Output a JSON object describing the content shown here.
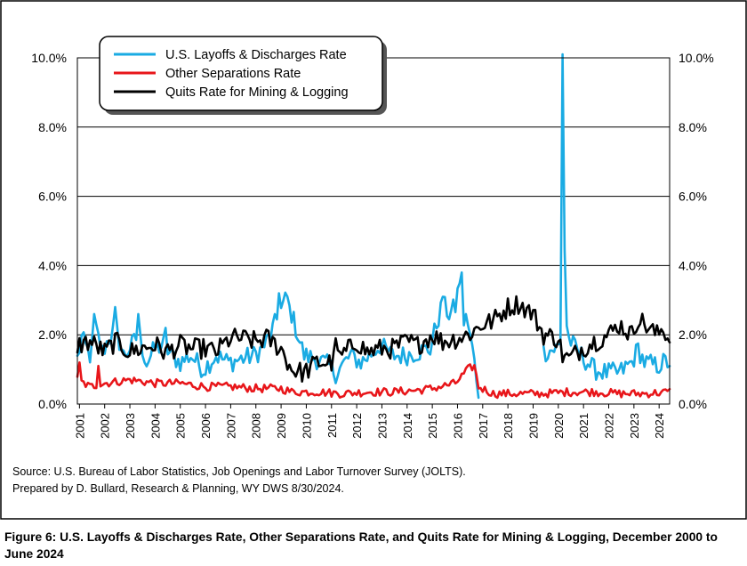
{
  "chart_data": {
    "type": "line",
    "x_start": "2000-12",
    "x_end": "2024-06",
    "x_ticks": [
      "2001",
      "2002",
      "2003",
      "2004",
      "2005",
      "2006",
      "2007",
      "2008",
      "2009",
      "2010",
      "2011",
      "2012",
      "2013",
      "2014",
      "2015",
      "2016",
      "2017",
      "2018",
      "2019",
      "2020",
      "2021",
      "2022",
      "2023",
      "2024"
    ],
    "y_ticks": [
      "0.0%",
      "2.0%",
      "4.0%",
      "6.0%",
      "8.0%",
      "10.0%"
    ],
    "ylim": [
      0,
      10
    ],
    "grid": "horizontal",
    "legend_position": "top-left",
    "series": [
      {
        "name": "U.S. Layoffs & Discharges Rate",
        "color": "#1AABE3",
        "knots": [
          [
            "2000-12",
            1.3
          ],
          [
            "2001-02",
            1.9
          ],
          [
            "2001-06",
            1.4
          ],
          [
            "2001-09",
            2.1
          ],
          [
            "2001-12",
            1.5
          ],
          [
            "2002-03",
            1.9
          ],
          [
            "2002-06",
            2.2
          ],
          [
            "2002-10",
            1.4
          ],
          [
            "2003-02",
            1.7
          ],
          [
            "2003-05",
            2.0
          ],
          [
            "2003-09",
            1.2
          ],
          [
            "2004-01",
            1.6
          ],
          [
            "2004-05",
            1.7
          ],
          [
            "2004-09",
            1.4
          ],
          [
            "2005-01",
            1.2
          ],
          [
            "2005-06",
            1.4
          ],
          [
            "2005-12",
            1.0
          ],
          [
            "2006-06",
            1.4
          ],
          [
            "2006-12",
            1.2
          ],
          [
            "2007-06",
            1.3
          ],
          [
            "2007-12",
            1.4
          ],
          [
            "2008-04",
            1.6
          ],
          [
            "2008-08",
            2.0
          ],
          [
            "2008-12",
            2.6
          ],
          [
            "2009-03",
            3.0
          ],
          [
            "2009-06",
            2.6
          ],
          [
            "2009-09",
            2.0
          ],
          [
            "2009-12",
            1.4
          ],
          [
            "2010-06",
            1.3
          ],
          [
            "2010-12",
            1.1
          ],
          [
            "2011-03",
            0.9
          ],
          [
            "2011-06",
            1.1
          ],
          [
            "2011-10",
            1.4
          ],
          [
            "2012-03",
            1.2
          ],
          [
            "2012-07",
            1.4
          ],
          [
            "2012-12",
            1.7
          ],
          [
            "2013-06",
            1.4
          ],
          [
            "2013-12",
            1.4
          ],
          [
            "2014-06",
            1.5
          ],
          [
            "2014-12",
            1.6
          ],
          [
            "2015-03",
            2.3
          ],
          [
            "2015-06",
            2.9
          ],
          [
            "2015-09",
            2.6
          ],
          [
            "2015-12",
            2.8
          ],
          [
            "2016-02",
            3.6
          ],
          [
            "2016-04",
            2.4
          ],
          [
            "2016-07",
            2.0
          ],
          [
            "2016-09",
            1.2
          ],
          [
            "2016-11",
            0.4
          ]
        ],
        "spikes": [
          [
            "2001-08",
            2.6
          ],
          [
            "2002-06",
            2.8
          ],
          [
            "2003-05",
            2.6
          ],
          [
            "2004-06",
            2.2
          ],
          [
            "2008-12",
            3.2
          ],
          [
            "2009-04",
            3.1
          ],
          [
            "2015-06",
            3.1
          ],
          [
            "2016-03",
            3.8
          ],
          [
            "2016-05",
            2.6
          ]
        ]
      },
      {
        "name": "U.S. Layoffs & Discharges Rate",
        "color": "#1AABE3",
        "knots": [
          [
            "2019-06",
            1.5
          ],
          [
            "2019-12",
            1.6
          ],
          [
            "2020-02",
            1.7
          ],
          [
            "2020-03",
            10.1
          ],
          [
            "2020-04",
            4.5
          ],
          [
            "2020-05",
            2.3
          ],
          [
            "2020-06",
            1.9
          ],
          [
            "2020-09",
            1.6
          ],
          [
            "2020-12",
            1.4
          ],
          [
            "2021-06",
            1.0
          ],
          [
            "2021-12",
            0.9
          ],
          [
            "2022-06",
            0.9
          ],
          [
            "2022-12",
            1.2
          ],
          [
            "2023-03",
            1.6
          ],
          [
            "2023-06",
            1.2
          ],
          [
            "2023-12",
            1.1
          ],
          [
            "2024-03",
            1.2
          ],
          [
            "2024-06",
            1.2
          ]
        ],
        "spikes": [
          [
            "2020-03",
            10.1
          ]
        ]
      },
      {
        "name": "Other Separations Rate",
        "color": "#E8161A",
        "knots": [
          [
            "2000-12",
            0.7
          ],
          [
            "2001-06",
            0.5
          ],
          [
            "2002-01",
            0.6
          ],
          [
            "2003-01",
            0.7
          ],
          [
            "2004-01",
            0.6
          ],
          [
            "2005-01",
            0.6
          ],
          [
            "2006-01",
            0.5
          ],
          [
            "2007-01",
            0.5
          ],
          [
            "2008-01",
            0.45
          ],
          [
            "2009-01",
            0.45
          ],
          [
            "2009-06",
            0.35
          ],
          [
            "2010-06",
            0.35
          ],
          [
            "2011-06",
            0.3
          ],
          [
            "2012-06",
            0.35
          ],
          [
            "2013-06",
            0.35
          ],
          [
            "2014-06",
            0.4
          ],
          [
            "2015-01",
            0.45
          ],
          [
            "2015-12",
            0.6
          ],
          [
            "2016-06",
            1.0
          ],
          [
            "2016-09",
            1.1
          ],
          [
            "2016-11",
            0.5
          ],
          [
            "2017-06",
            0.3
          ],
          [
            "2018-06",
            0.3
          ],
          [
            "2019-06",
            0.3
          ],
          [
            "2020-06",
            0.35
          ],
          [
            "2021-06",
            0.35
          ],
          [
            "2022-06",
            0.3
          ],
          [
            "2023-06",
            0.3
          ],
          [
            "2024-06",
            0.35
          ]
        ],
        "spikes": [
          [
            "2001-01",
            1.2
          ],
          [
            "2001-10",
            1.1
          ]
        ]
      },
      {
        "name": "Quits Rate for Mining & Logging",
        "color": "#000000",
        "knots": [
          [
            "2000-12",
            1.7
          ],
          [
            "2001-06",
            1.8
          ],
          [
            "2002-01",
            1.5
          ],
          [
            "2002-06",
            1.8
          ],
          [
            "2003-01",
            1.5
          ],
          [
            "2003-06",
            1.6
          ],
          [
            "2004-01",
            1.7
          ],
          [
            "2004-06",
            1.5
          ],
          [
            "2005-01",
            1.7
          ],
          [
            "2005-06",
            1.6
          ],
          [
            "2006-01",
            1.6
          ],
          [
            "2006-06",
            1.5
          ],
          [
            "2007-01",
            1.9
          ],
          [
            "2007-06",
            1.9
          ],
          [
            "2008-01",
            1.8
          ],
          [
            "2008-06",
            1.9
          ],
          [
            "2009-01",
            1.6
          ],
          [
            "2009-06",
            1.0
          ],
          [
            "2009-12",
            0.9
          ],
          [
            "2010-06",
            1.2
          ],
          [
            "2011-01",
            1.2
          ],
          [
            "2011-06",
            1.4
          ],
          [
            "2012-01",
            1.8
          ],
          [
            "2012-06",
            1.5
          ],
          [
            "2013-01",
            1.6
          ],
          [
            "2013-06",
            1.6
          ],
          [
            "2014-01",
            1.8
          ],
          [
            "2014-06",
            1.7
          ],
          [
            "2015-01",
            2.0
          ],
          [
            "2015-06",
            1.8
          ],
          [
            "2016-01",
            1.9
          ],
          [
            "2016-06",
            2.0
          ],
          [
            "2017-01",
            2.3
          ],
          [
            "2017-06",
            2.4
          ],
          [
            "2018-01",
            2.8
          ],
          [
            "2018-06",
            2.9
          ],
          [
            "2019-01",
            2.6
          ],
          [
            "2019-06",
            2.0
          ],
          [
            "2020-01",
            1.9
          ],
          [
            "2020-03",
            1.4
          ],
          [
            "2020-06",
            1.3
          ],
          [
            "2020-12",
            1.6
          ],
          [
            "2021-06",
            1.8
          ],
          [
            "2022-01",
            2.0
          ],
          [
            "2022-06",
            2.3
          ],
          [
            "2022-12",
            2.0
          ],
          [
            "2023-03",
            2.5
          ],
          [
            "2023-06",
            2.3
          ],
          [
            "2023-12",
            2.0
          ],
          [
            "2024-03",
            2.2
          ],
          [
            "2024-06",
            1.8
          ]
        ],
        "spikes": [
          [
            "2011-03",
            1.9
          ]
        ]
      }
    ]
  },
  "source": {
    "line1": "Source: U.S. Bureau of Labor Statistics, Job Openings and Labor Turnover Survey (JOLTS).",
    "line2": "Prepared by D. Bullard, Research & Planning, WY DWS 8/30/2024."
  },
  "caption": "Figure 6: U.S. Layoffs & Discharges Rate, Other Separations Rate, and Quits Rate for Mining & Logging, December 2000 to June 2024"
}
